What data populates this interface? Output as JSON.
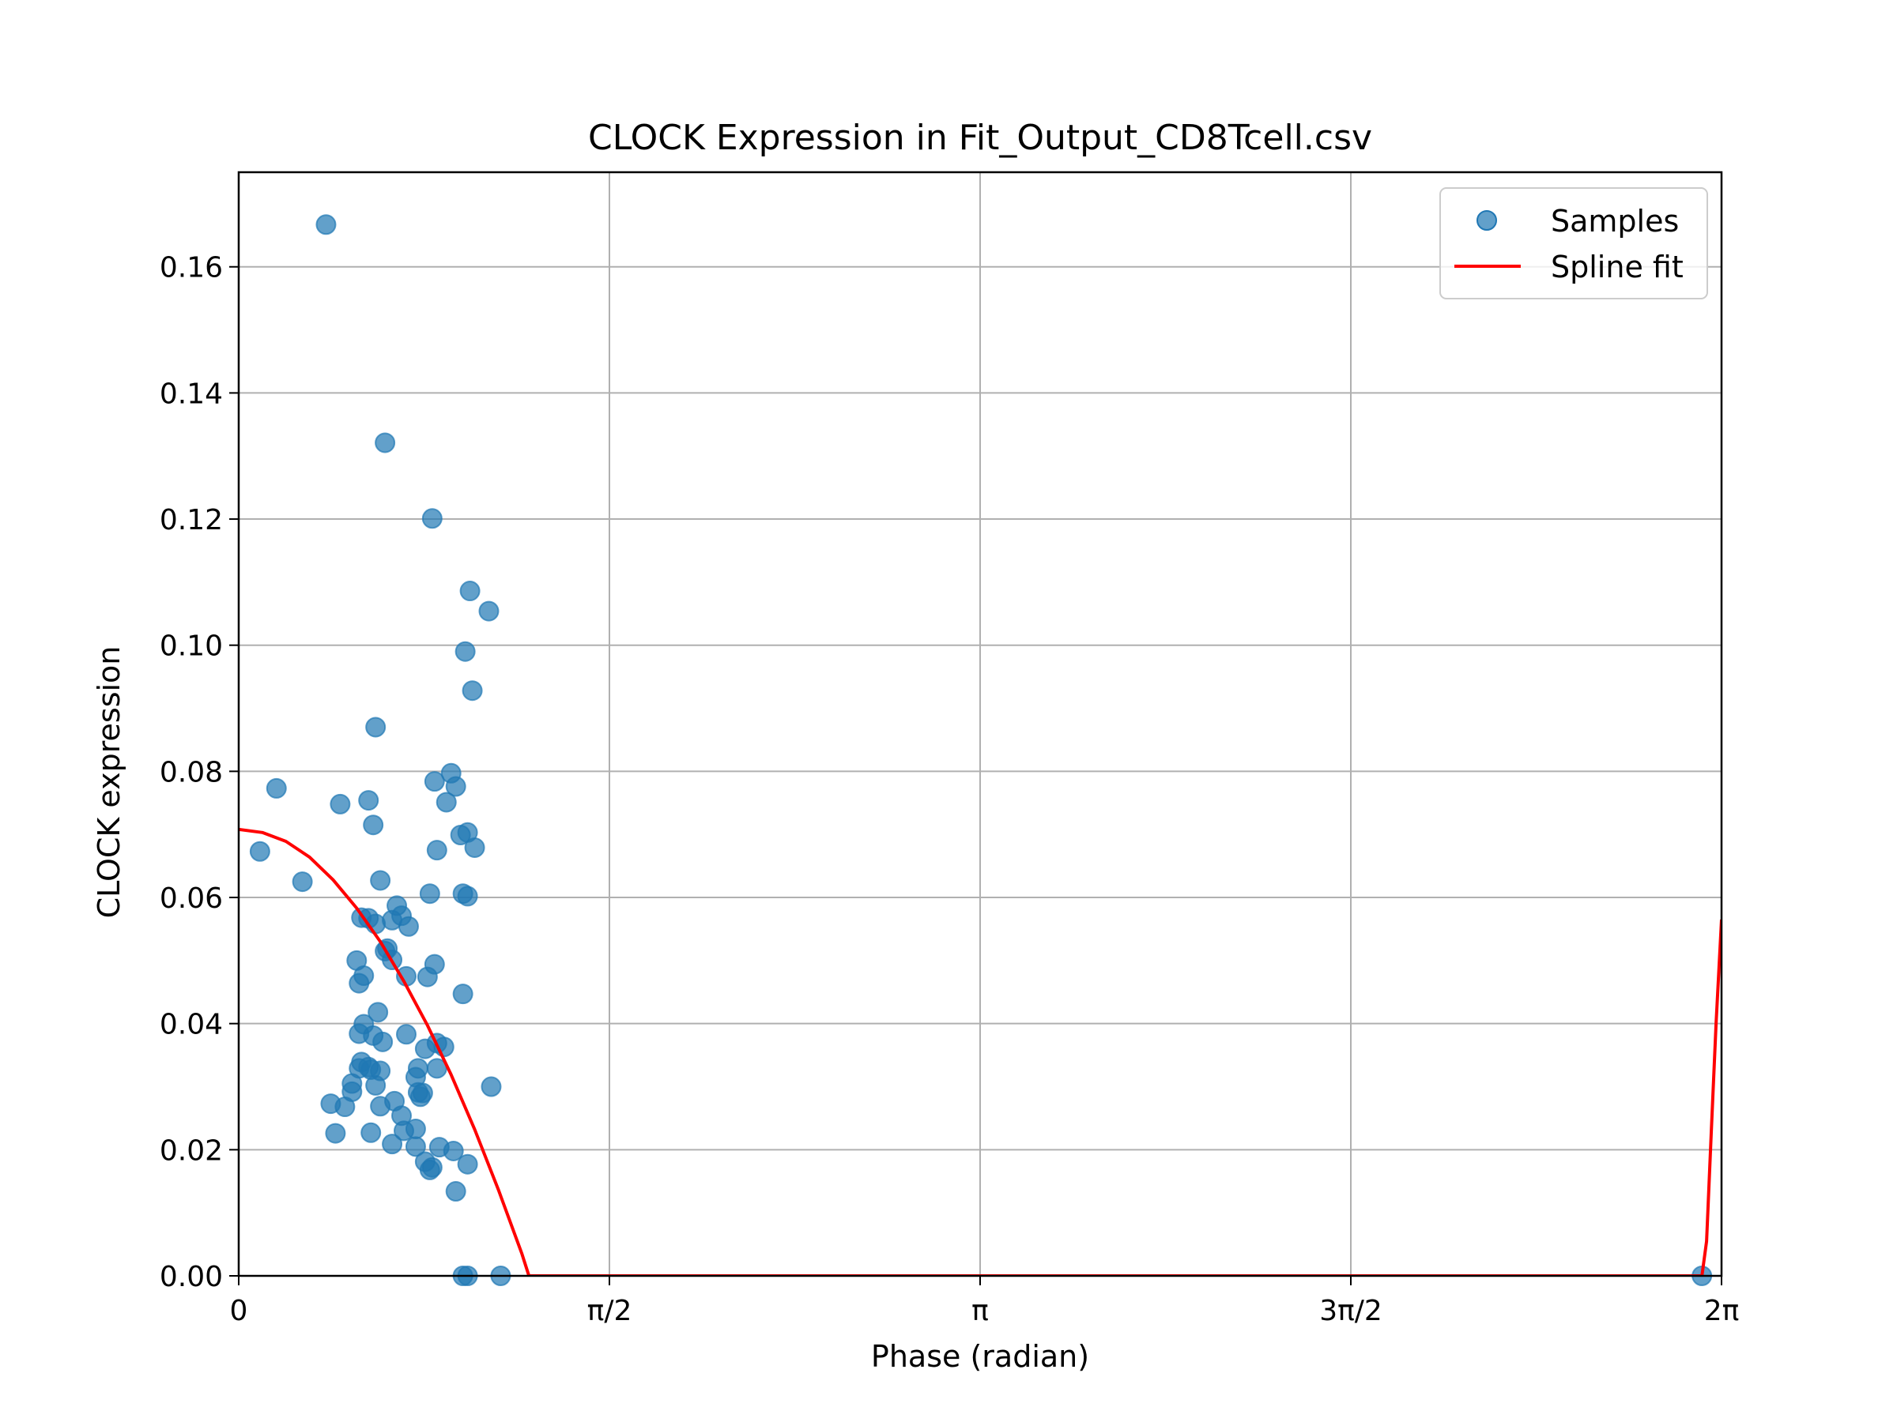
{
  "chart_data": {
    "type": "scatter",
    "title": "CLOCK Expression in Fit_Output_CD8Tcell.csv",
    "xlabel": "Phase (radian)",
    "ylabel": "CLOCK expression",
    "xlim": [
      0,
      6.2832
    ],
    "ylim": [
      0,
      0.175
    ],
    "x_ticks": [
      {
        "value": 0,
        "label": "0"
      },
      {
        "value": 1.5708,
        "label": "π/2"
      },
      {
        "value": 3.1416,
        "label": "π"
      },
      {
        "value": 4.7124,
        "label": "3π/2"
      },
      {
        "value": 6.2832,
        "label": "2π"
      }
    ],
    "y_ticks": [
      {
        "value": 0.0,
        "label": "0.00"
      },
      {
        "value": 0.02,
        "label": "0.02"
      },
      {
        "value": 0.04,
        "label": "0.04"
      },
      {
        "value": 0.06,
        "label": "0.06"
      },
      {
        "value": 0.08,
        "label": "0.08"
      },
      {
        "value": 0.1,
        "label": "0.10"
      },
      {
        "value": 0.12,
        "label": "0.12"
      },
      {
        "value": 0.14,
        "label": "0.14"
      },
      {
        "value": 0.16,
        "label": "0.16"
      }
    ],
    "grid": true,
    "legend": "top-right",
    "series": [
      {
        "name": "Samples",
        "kind": "scatter",
        "color": "#1f77b4",
        "x": [
          0.37,
          0.62,
          0.43,
          0.55,
          0.6,
          0.27,
          0.09,
          0.16,
          0.82,
          0.48,
          0.52,
          0.55,
          0.53,
          0.6,
          0.58,
          0.61,
          0.59,
          0.69,
          0.58,
          0.67,
          0.8,
          0.63,
          0.65,
          0.72,
          0.71,
          0.62,
          0.53,
          0.55,
          0.71,
          0.76,
          0.65,
          0.57,
          0.45,
          0.51,
          0.5,
          0.56,
          0.52,
          0.51,
          0.51,
          0.6,
          0.56,
          0.7,
          0.77,
          0.66,
          0.69,
          0.48,
          0.39,
          0.41,
          0.75,
          0.78,
          0.75,
          0.79,
          0.65,
          0.82,
          0.81,
          0.91,
          0.97,
          0.85,
          0.84,
          1.07,
          0.87,
          0.79,
          0.75,
          0.76,
          0.83,
          0.84,
          0.95,
          0.97,
          0.95,
          0.97,
          1.0,
          0.92,
          0.9,
          0.94,
          0.99,
          0.96,
          0.98,
          1.06,
          0.57,
          0.58,
          0.81,
          0.83,
          0.84,
          0.88,
          0.92,
          0.95,
          0.97,
          1.11,
          6.2
        ],
        "y": [
          0.1667,
          0.1321,
          0.0748,
          0.0754,
          0.0627,
          0.0625,
          0.0673,
          0.0773,
          0.1201,
          0.0305,
          0.0339,
          0.0331,
          0.0399,
          0.0325,
          0.0302,
          0.0371,
          0.0418,
          0.0571,
          0.0558,
          0.0587,
          0.0474,
          0.0519,
          0.0501,
          0.0554,
          0.0475,
          0.0515,
          0.0476,
          0.0567,
          0.0383,
          0.0329,
          0.0564,
          0.0381,
          0.0268,
          0.0329,
          0.05,
          0.0227,
          0.0568,
          0.0464,
          0.0384,
          0.0269,
          0.0327,
          0.023,
          0.0284,
          0.0277,
          0.0254,
          0.0292,
          0.0273,
          0.0226,
          0.0233,
          0.029,
          0.0205,
          0.0181,
          0.0209,
          0.0172,
          0.0168,
          0.0198,
          0.0177,
          0.0204,
          0.0329,
          0.03,
          0.0363,
          0.036,
          0.0315,
          0.0291,
          0.0494,
          0.0369,
          0.0447,
          0.0602,
          0.0606,
          0.0703,
          0.0679,
          0.0776,
          0.0797,
          0.0699,
          0.0928,
          0.099,
          0.1086,
          0.1054,
          0.0715,
          0.087,
          0.0606,
          0.0784,
          0.0675,
          0.0751,
          0.0134,
          0.0,
          0.0,
          0.0,
          0.0
        ]
      },
      {
        "name": "Spline fit",
        "kind": "line",
        "color": "#ff0000",
        "x": [
          0,
          0.1,
          0.2,
          0.3,
          0.4,
          0.5,
          0.6,
          0.7,
          0.8,
          0.9,
          1.0,
          1.1,
          1.2,
          1.23,
          1.5,
          2.0,
          3.0,
          4.0,
          5.0,
          6.0,
          6.1,
          6.2,
          6.22,
          6.24,
          6.26,
          6.2832
        ],
        "y": [
          0.0708,
          0.0703,
          0.0689,
          0.0664,
          0.0628,
          0.0583,
          0.053,
          0.0467,
          0.0397,
          0.0319,
          0.0232,
          0.0137,
          0.0035,
          0.0,
          0.0,
          0.0,
          0.0,
          0.0,
          0.0,
          0.0,
          0.0,
          0.0,
          0.0055,
          0.023,
          0.04,
          0.0565
        ]
      }
    ]
  }
}
